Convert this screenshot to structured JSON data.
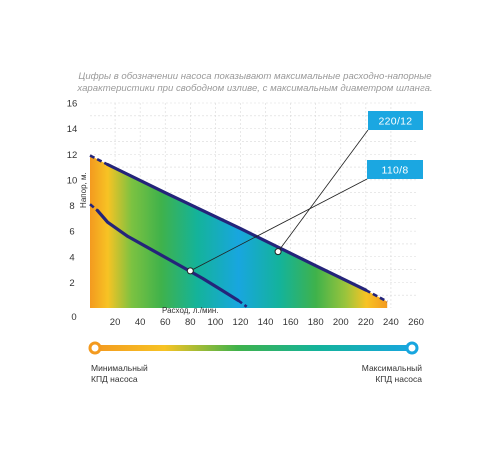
{
  "chart_data": {
    "type": "line",
    "note_lines": [
      "Цифры в обозначении насоса показывают максимальные расходно-напорные",
      "характеристики при свободном изливе, с максимальным диаметром шланга."
    ],
    "xlabel": "Расход, л./мин.",
    "ylabel": "Напор, м.",
    "xlim": [
      0,
      260
    ],
    "ylim": [
      0,
      16
    ],
    "x_ticks": [
      "0",
      "20",
      "40",
      "60",
      "80",
      "100",
      "120",
      "140",
      "160",
      "180",
      "200",
      "220",
      "240",
      "260"
    ],
    "y_ticks": [
      "2",
      "4",
      "6",
      "8",
      "10",
      "12",
      "14",
      "16"
    ],
    "grid": true,
    "series": [
      {
        "name": "110/8",
        "solid": [
          [
            6,
            7.6
          ],
          [
            14,
            6.7
          ],
          [
            30,
            5.6
          ],
          [
            50,
            4.5
          ],
          [
            70,
            3.4
          ],
          [
            90,
            2.3
          ],
          [
            105,
            1.4
          ],
          [
            118,
            0.6
          ]
        ],
        "dashed_start": [
          [
            0,
            8.1
          ],
          [
            6,
            7.6
          ]
        ],
        "dashed_end": [
          [
            118,
            0.6
          ],
          [
            125,
            0.1
          ]
        ],
        "callout_point": [
          80,
          2.9
        ]
      },
      {
        "name": "220/12",
        "solid": [
          [
            14,
            11.2
          ],
          [
            60,
            9.0
          ],
          [
            120,
            6.2
          ],
          [
            180,
            3.3
          ],
          [
            220,
            1.4
          ]
        ],
        "dashed_start": [
          [
            0,
            11.9
          ],
          [
            14,
            11.2
          ]
        ],
        "dashed_end": [
          [
            220,
            1.4
          ],
          [
            237,
            0.5
          ]
        ],
        "callout_point": [
          150,
          4.4
        ]
      }
    ],
    "efficiency_scale": {
      "min_label": [
        "Минимальный",
        "КПД насоса"
      ],
      "max_label": [
        "Максимальный",
        "КПД насоса"
      ]
    },
    "colors": {
      "orange": "#f39a1f",
      "yellow": "#f7c324",
      "green": "#3fb24b",
      "teal": "#14b39a",
      "blue": "#18a6df",
      "curve": "#24247a",
      "callout": "#1ba7e1",
      "grid": "#d9d9d9"
    }
  }
}
